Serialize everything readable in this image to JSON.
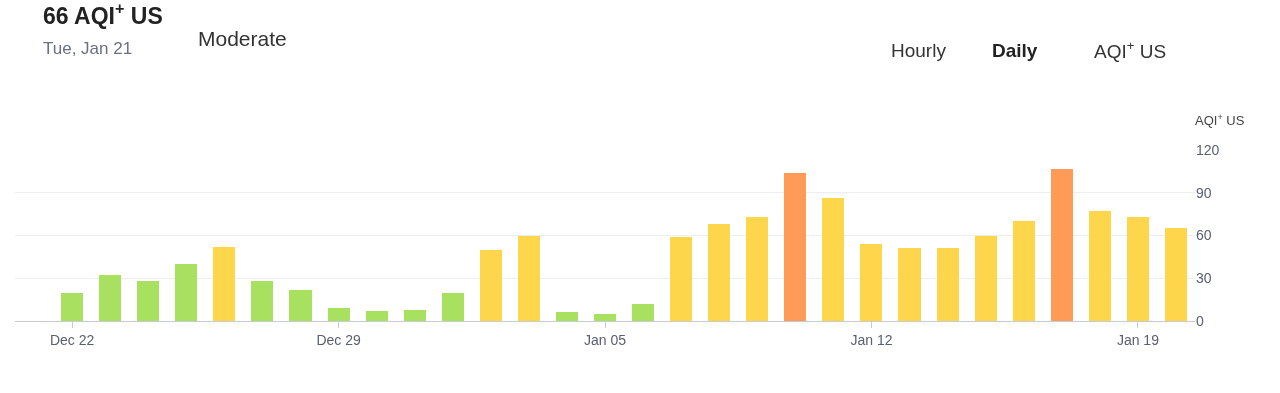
{
  "chart_data": {
    "type": "bar",
    "title": "66 AQI$^{+}$ US",
    "subtitle": "Tue, Jan 21",
    "ylabel": "AQI$^{+}$ US",
    "annotations": [
      "Moderate",
      "Hourly",
      "Daily",
      "AQI$^{+}$ US"
    ],
    "categories": [
      "Dec 22",
      null,
      null,
      null,
      null,
      null,
      null,
      "Dec 29",
      null,
      null,
      null,
      null,
      null,
      null,
      "Jan 05",
      null,
      null,
      null,
      null,
      null,
      null,
      "Jan 12",
      null,
      null,
      null,
      null,
      null,
      null,
      "Jan 19",
      null
    ],
    "values": [
      20,
      32,
      28,
      40,
      52,
      28,
      22,
      9,
      7,
      8,
      20,
      50,
      60,
      6,
      5,
      12,
      59,
      68,
      73,
      104,
      86,
      54,
      51,
      51,
      60,
      70,
      107,
      77,
      73,
      65
    ],
    "colors": [
      "#a8e05f",
      "#a8e05f",
      "#a8e05f",
      "#a8e05f",
      "#fdd64b",
      "#a8e05f",
      "#a8e05f",
      "#a8e05f",
      "#a8e05f",
      "#a8e05f",
      "#a8e05f",
      "#fdd64b",
      "#fdd64b",
      "#a8e05f",
      "#a8e05f",
      "#a8e05f",
      "#fdd64b",
      "#fdd64b",
      "#fdd64b",
      "#ff9b57",
      "#fdd64b",
      "#fdd64b",
      "#fdd64b",
      "#fdd64b",
      "#fdd64b",
      "#fdd64b",
      "#ff9b57",
      "#fdd64b",
      "#fdd64b",
      "#fdd64b"
    ],
    "ylim": [
      0,
      120
    ],
    "yticks": [
      0,
      30,
      60,
      90,
      120
    ],
    "grid": "y",
    "legend": false
  }
}
